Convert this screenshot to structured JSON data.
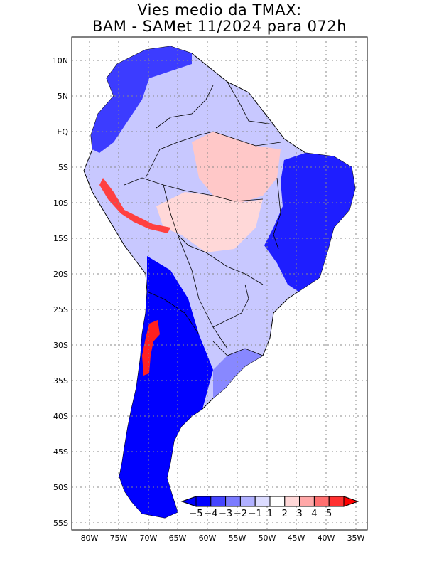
{
  "title": {
    "line1": "Vies medio da TMAX:",
    "line2": "BAM - SAMet 11/2024  para 072h"
  },
  "map": {
    "lat_labels": [
      "10N",
      "5N",
      "EQ",
      "5S",
      "10S",
      "15S",
      "20S",
      "25S",
      "30S",
      "35S",
      "40S",
      "45S",
      "50S",
      "55S"
    ],
    "lon_labels": [
      "80W",
      "75W",
      "70W",
      "65W",
      "60W",
      "55W",
      "50W",
      "45W",
      "40W",
      "35W"
    ],
    "extent": {
      "lon": [
        -83,
        -34
      ],
      "lat": [
        -56,
        13
      ]
    }
  },
  "colorbar": {
    "labels": [
      "-5",
      "-4",
      "-3",
      "-2",
      "-1",
      "1",
      "2",
      "3",
      "4",
      "5"
    ],
    "colors": [
      "#0000ff",
      "#0000ff",
      "#4545ff",
      "#7c7cff",
      "#b0b0ff",
      "#dcdcff",
      "#ffffff",
      "#ffd8d8",
      "#ffa8a8",
      "#ff7070",
      "#ff3030",
      "#ff0000"
    ]
  }
}
